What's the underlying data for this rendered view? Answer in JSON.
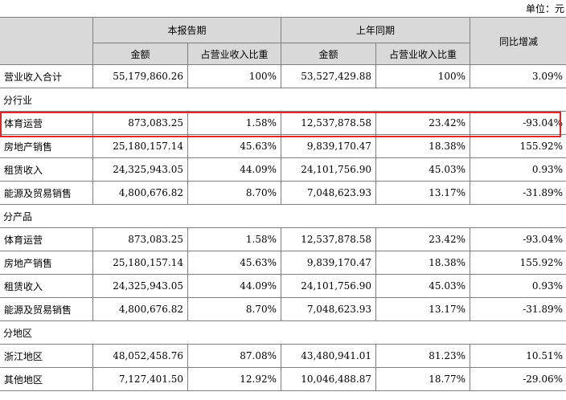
{
  "unit_label": "单位：元",
  "headers": {
    "current_period": "本报告期",
    "prior_period": "上年同期",
    "yoy_change": "同比增减",
    "amount": "金额",
    "share": "占营业收入比重"
  },
  "rows": [
    {
      "type": "data",
      "label": "营业收入合计",
      "cur_amt": "55,179,860.26",
      "cur_pct": "100%",
      "prev_amt": "53,527,429.88",
      "prev_pct": "100%",
      "yoy": "3.09%"
    },
    {
      "type": "section",
      "label": "分行业"
    },
    {
      "type": "data",
      "label": "体育运营",
      "cur_amt": "873,083.25",
      "cur_pct": "1.58%",
      "prev_amt": "12,537,878.58",
      "prev_pct": "23.42%",
      "yoy": "-93.04%",
      "highlighted": true
    },
    {
      "type": "data",
      "label": "房地产销售",
      "cur_amt": "25,180,157.14",
      "cur_pct": "45.63%",
      "prev_amt": "9,839,170.47",
      "prev_pct": "18.38%",
      "yoy": "155.92%"
    },
    {
      "type": "data",
      "label": "租赁收入",
      "cur_amt": "24,325,943.05",
      "cur_pct": "44.09%",
      "prev_amt": "24,101,756.90",
      "prev_pct": "45.03%",
      "yoy": "0.93%"
    },
    {
      "type": "data",
      "label": "能源及贸易销售",
      "cur_amt": "4,800,676.82",
      "cur_pct": "8.70%",
      "prev_amt": "7,048,623.93",
      "prev_pct": "13.17%",
      "yoy": "-31.89%"
    },
    {
      "type": "section",
      "label": "分产品"
    },
    {
      "type": "data",
      "label": "体育运营",
      "cur_amt": "873,083.25",
      "cur_pct": "1.58%",
      "prev_amt": "12,537,878.58",
      "prev_pct": "23.42%",
      "yoy": "-93.04%"
    },
    {
      "type": "data",
      "label": "房地产销售",
      "cur_amt": "25,180,157.14",
      "cur_pct": "45.63%",
      "prev_amt": "9,839,170.47",
      "prev_pct": "18.38%",
      "yoy": "155.92%"
    },
    {
      "type": "data",
      "label": "租赁收入",
      "cur_amt": "24,325,943.05",
      "cur_pct": "44.09%",
      "prev_amt": "24,101,756.90",
      "prev_pct": "45.03%",
      "yoy": "0.93%"
    },
    {
      "type": "data",
      "label": "能源及贸易销售",
      "cur_amt": "4,800,676.82",
      "cur_pct": "8.70%",
      "prev_amt": "7,048,623.93",
      "prev_pct": "13.17%",
      "yoy": "-31.89%"
    },
    {
      "type": "section",
      "label": "分地区"
    },
    {
      "type": "data",
      "label": "浙江地区",
      "cur_amt": "48,052,458.76",
      "cur_pct": "87.08%",
      "prev_amt": "43,480,941.01",
      "prev_pct": "81.23%",
      "yoy": "10.51%"
    },
    {
      "type": "data",
      "label": "其他地区",
      "cur_amt": "7,127,401.50",
      "cur_pct": "12.92%",
      "prev_amt": "10,046,488.87",
      "prev_pct": "18.77%",
      "yoy": "-29.06%"
    }
  ],
  "colors": {
    "header_bg": "#d9d9d9",
    "border": "#7f7f7f",
    "highlight": "#e3262a"
  }
}
